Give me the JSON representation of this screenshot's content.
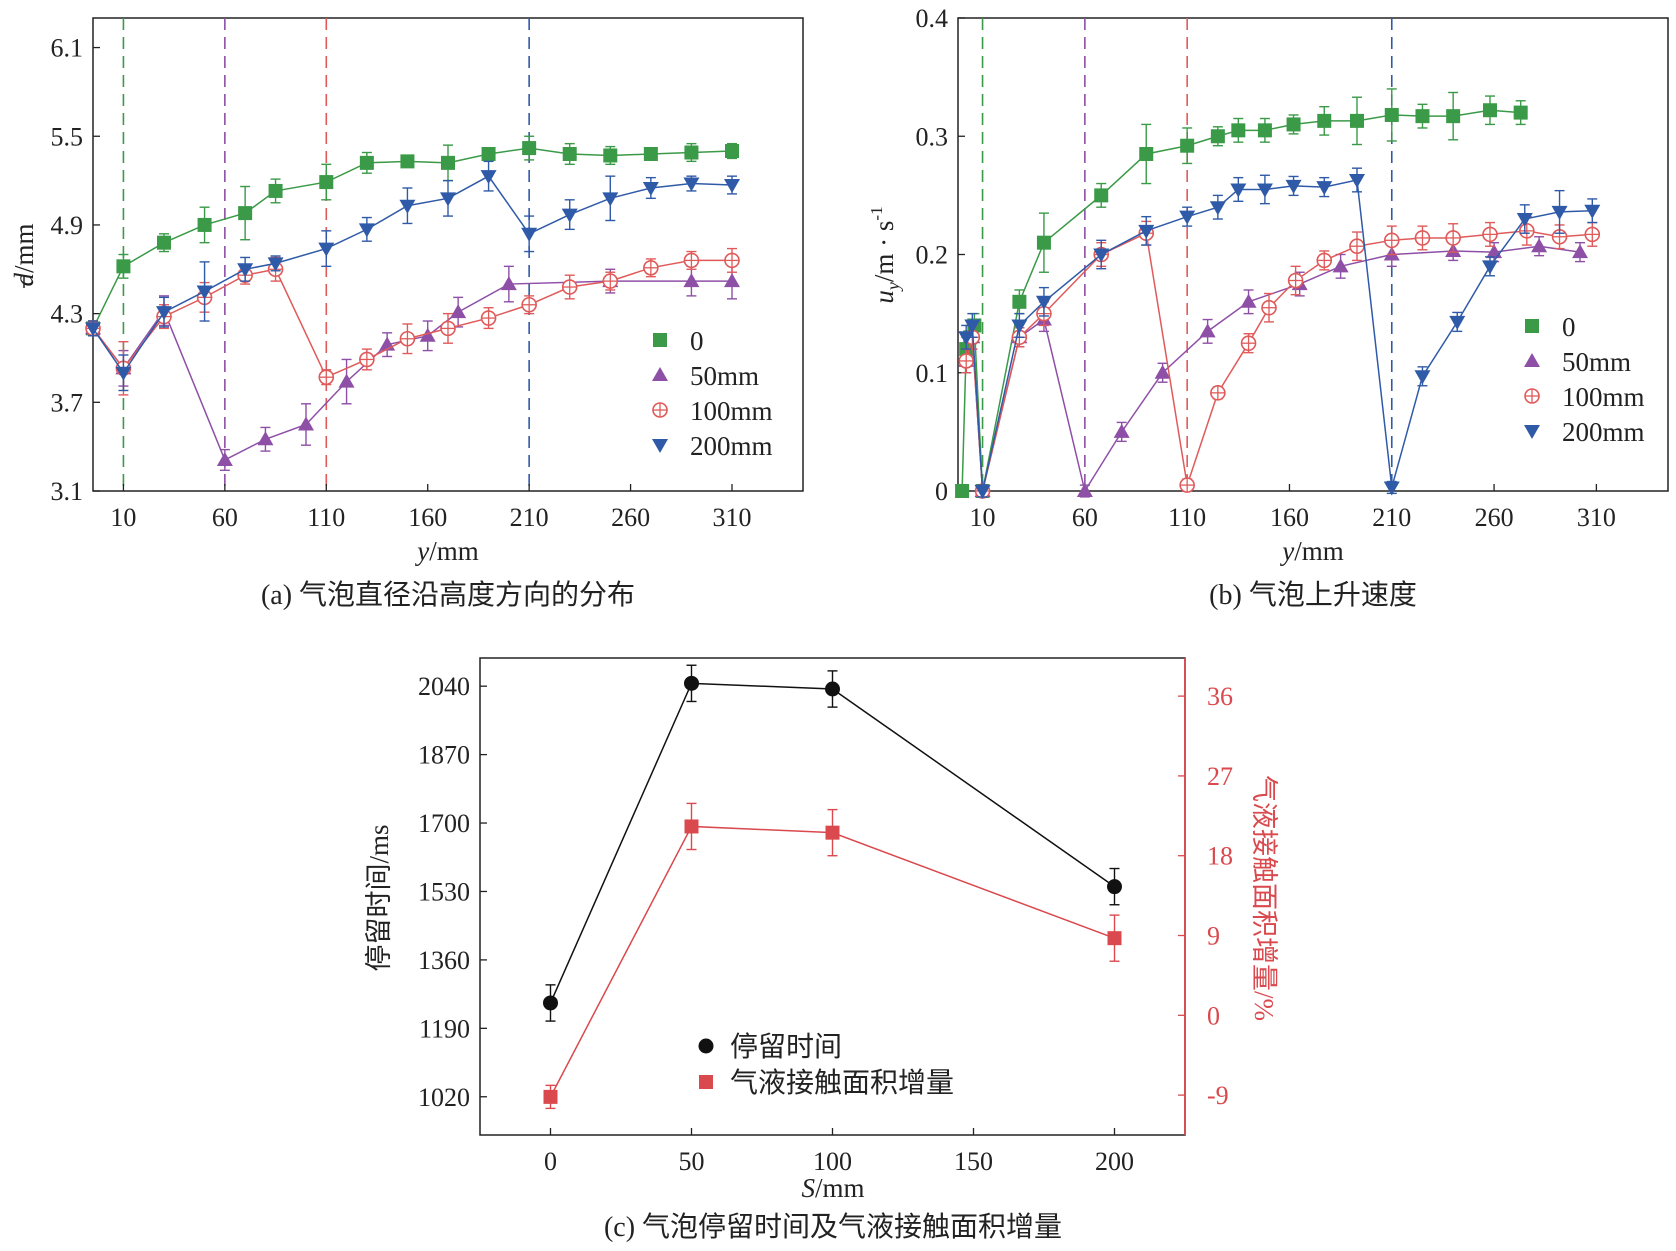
{
  "chart_data": [
    {
      "id": "a",
      "type": "line",
      "caption": "(a) 气泡直径沿高度方向的分布",
      "xlabel_var": "y",
      "xlabel_unit": "/mm",
      "ylabel_var": "d",
      "ylabel_unit": "/mm",
      "xlim": [
        -5,
        345
      ],
      "ylim": [
        3.1,
        6.3
      ],
      "xticks": [
        "10",
        "60",
        "110",
        "160",
        "210",
        "260",
        "310"
      ],
      "yticks": [
        "3.1",
        "3.7",
        "4.3",
        "4.9",
        "5.5",
        "6.1"
      ],
      "vlines": [
        {
          "x": 10,
          "color": "#3a9a47"
        },
        {
          "x": 60,
          "color": "#8e4fa6"
        },
        {
          "x": 110,
          "color": "#e05a5a"
        },
        {
          "x": 210,
          "color": "#2f5aa8"
        }
      ],
      "series": [
        {
          "name": "0",
          "marker": "square",
          "color": "#3a9a47",
          "x": [
            -5,
            10,
            30,
            50,
            70,
            85,
            110,
            130,
            150,
            170,
            190,
            210,
            230,
            250,
            270,
            290,
            310
          ],
          "y": [
            4.2,
            4.62,
            4.78,
            4.9,
            4.98,
            5.13,
            5.19,
            5.32,
            5.33,
            5.32,
            5.38,
            5.42,
            5.38,
            5.37,
            5.38,
            5.39,
            5.4
          ],
          "err": [
            0.05,
            0.08,
            0.06,
            0.12,
            0.18,
            0.08,
            0.12,
            0.07,
            0.04,
            0.12,
            0.04,
            0.08,
            0.07,
            0.06,
            0.04,
            0.06,
            0.05
          ]
        },
        {
          "name": "50mm",
          "marker": "triangle-up",
          "color": "#8e4fa6",
          "x": [
            -5,
            10,
            30,
            60,
            80,
            100,
            120,
            140,
            160,
            175,
            200,
            250,
            290,
            310
          ],
          "y": [
            4.2,
            3.93,
            4.32,
            3.31,
            3.45,
            3.55,
            3.84,
            4.09,
            4.15,
            4.31,
            4.5,
            4.52,
            4.52,
            4.52
          ],
          "err": [
            0.05,
            0.12,
            0.1,
            0.07,
            0.08,
            0.14,
            0.15,
            0.08,
            0.1,
            0.1,
            0.12,
            0.08,
            0.1,
            0.12
          ]
        },
        {
          "name": "100mm",
          "marker": "circle-plus",
          "color": "#e05a5a",
          "x": [
            -5,
            10,
            30,
            50,
            70,
            85,
            110,
            130,
            150,
            170,
            190,
            210,
            230,
            250,
            270,
            290,
            310
          ],
          "y": [
            4.2,
            3.93,
            4.28,
            4.41,
            4.56,
            4.6,
            3.87,
            3.99,
            4.13,
            4.2,
            4.27,
            4.36,
            4.48,
            4.52,
            4.61,
            4.66,
            4.66
          ],
          "err": [
            0.05,
            0.18,
            0.08,
            0.1,
            0.06,
            0.08,
            0.05,
            0.07,
            0.1,
            0.1,
            0.07,
            0.06,
            0.08,
            0.06,
            0.06,
            0.06,
            0.08
          ]
        },
        {
          "name": "200mm",
          "marker": "triangle-down",
          "color": "#2f5aa8",
          "x": [
            -5,
            10,
            30,
            50,
            70,
            85,
            110,
            130,
            150,
            170,
            190,
            210,
            230,
            250,
            270,
            290,
            310
          ],
          "y": [
            4.2,
            3.9,
            4.31,
            4.45,
            4.6,
            4.64,
            4.74,
            4.87,
            5.03,
            5.08,
            5.23,
            4.84,
            4.97,
            5.08,
            5.15,
            5.18,
            5.17
          ],
          "err": [
            0.05,
            0.12,
            0.1,
            0.2,
            0.08,
            0.05,
            0.12,
            0.08,
            0.12,
            0.12,
            0.1,
            0.12,
            0.1,
            0.15,
            0.07,
            0.05,
            0.06
          ]
        }
      ]
    },
    {
      "id": "b",
      "type": "line",
      "caption": "(b) 气泡上升速度",
      "xlabel_var": "y",
      "xlabel_unit": "/mm",
      "ylabel_var": "u",
      "ylabel_sub": "y",
      "ylabel_unit": "/m · s",
      "ylabel_sup": "-1",
      "xlim": [
        -2,
        345
      ],
      "ylim": [
        0,
        0.4
      ],
      "xticks": [
        "10",
        "60",
        "110",
        "160",
        "210",
        "260",
        "310"
      ],
      "yticks": [
        "0",
        "0.1",
        "0.2",
        "0.3",
        "0.4"
      ],
      "vlines": [
        {
          "x": 10,
          "color": "#3a9a47"
        },
        {
          "x": 60,
          "color": "#8e4fa6"
        },
        {
          "x": 110,
          "color": "#e05a5a"
        },
        {
          "x": 210,
          "color": "#2f5aa8"
        }
      ],
      "series": [
        {
          "name": "0",
          "marker": "square",
          "color": "#3a9a47",
          "x": [
            0,
            2,
            4,
            6,
            10,
            28,
            40,
            68,
            90,
            110,
            125,
            135,
            148,
            162,
            177,
            193,
            210,
            225,
            240,
            258,
            273
          ],
          "y": [
            0,
            0.12,
            0.13,
            0.14,
            0.0,
            0.16,
            0.21,
            0.25,
            0.285,
            0.292,
            0.3,
            0.305,
            0.305,
            0.31,
            0.313,
            0.313,
            0.318,
            0.317,
            0.317,
            0.322,
            0.32
          ],
          "err": [
            0,
            0.01,
            0.01,
            0.01,
            0.005,
            0.01,
            0.025,
            0.01,
            0.025,
            0.015,
            0.008,
            0.01,
            0.01,
            0.008,
            0.012,
            0.02,
            0.022,
            0.01,
            0.02,
            0.012,
            0.01
          ]
        },
        {
          "name": "50mm",
          "marker": "triangle-up",
          "color": "#8e4fa6",
          "x": [
            2,
            5,
            10,
            28,
            40,
            60,
            78,
            98,
            120,
            140,
            165,
            185,
            210,
            240,
            260,
            282,
            302
          ],
          "y": [
            0.11,
            0.13,
            0.0,
            0.13,
            0.145,
            0.0,
            0.05,
            0.1,
            0.135,
            0.16,
            0.175,
            0.19,
            0.2,
            0.203,
            0.202,
            0.207,
            0.202
          ],
          "err": [
            0.01,
            0.01,
            0.005,
            0.008,
            0.01,
            0.005,
            0.008,
            0.008,
            0.01,
            0.01,
            0.01,
            0.01,
            0.01,
            0.008,
            0.008,
            0.008,
            0.008
          ]
        },
        {
          "name": "100mm",
          "marker": "circle-plus",
          "color": "#e05a5a",
          "x": [
            2,
            5,
            10,
            28,
            40,
            68,
            90,
            110,
            125,
            140,
            150,
            163,
            177,
            193,
            210,
            225,
            240,
            258,
            276,
            292,
            308
          ],
          "y": [
            0.11,
            0.13,
            0.0,
            0.13,
            0.15,
            0.2,
            0.218,
            0.005,
            0.083,
            0.125,
            0.155,
            0.178,
            0.195,
            0.207,
            0.212,
            0.214,
            0.214,
            0.217,
            0.22,
            0.215,
            0.217
          ],
          "err": [
            0.01,
            0.01,
            0.005,
            0.008,
            0.01,
            0.01,
            0.01,
            0.005,
            0.005,
            0.008,
            0.012,
            0.012,
            0.008,
            0.012,
            0.012,
            0.01,
            0.012,
            0.01,
            0.012,
            0.01,
            0.01
          ]
        },
        {
          "name": "200mm",
          "marker": "triangle-down",
          "color": "#2f5aa8",
          "x": [
            2,
            5,
            10,
            28,
            40,
            68,
            90,
            110,
            125,
            135,
            148,
            162,
            177,
            193,
            210,
            225,
            242,
            258,
            275,
            292,
            308
          ],
          "y": [
            0.13,
            0.14,
            0.0,
            0.14,
            0.16,
            0.2,
            0.22,
            0.232,
            0.24,
            0.255,
            0.255,
            0.258,
            0.257,
            0.263,
            0.003,
            0.097,
            0.143,
            0.19,
            0.23,
            0.236,
            0.237
          ],
          "err": [
            0.01,
            0.01,
            0.005,
            0.01,
            0.012,
            0.012,
            0.012,
            0.008,
            0.01,
            0.01,
            0.012,
            0.008,
            0.008,
            0.01,
            0.005,
            0.008,
            0.008,
            0.008,
            0.012,
            0.018,
            0.01
          ]
        }
      ]
    },
    {
      "id": "c",
      "type": "line",
      "caption": "(c) 气泡停留时间及气液接触面积增量",
      "xlabel_var": "S",
      "xlabel_unit": "/mm",
      "ylabel": "停留时间/ms",
      "ylabel2": "气液接触面积增量/%",
      "xlim": [
        -25,
        225
      ],
      "xticks": [
        "0",
        "50",
        "100",
        "150",
        "200"
      ],
      "ylim": [
        925,
        2110
      ],
      "yticks": [
        "1020",
        "1190",
        "1360",
        "1530",
        "1700",
        "1870",
        "2040"
      ],
      "ylim2": [
        -13.5,
        40.3
      ],
      "yticks2": [
        "-9",
        "0",
        "9",
        "18",
        "27",
        "36"
      ],
      "axis2_color": "#d9494d",
      "series": [
        {
          "name": "停留时间",
          "marker": "circle",
          "color": "#111111",
          "axis": "left",
          "x": [
            0,
            50,
            100,
            200
          ],
          "y": [
            1253,
            2047,
            2033,
            1542
          ],
          "err": [
            45,
            45,
            45,
            45
          ]
        },
        {
          "name": "气液接触面积增量",
          "marker": "square",
          "color": "#d9494d",
          "axis": "right",
          "x": [
            0,
            50,
            100,
            200
          ],
          "y": [
            -9.2,
            21.3,
            20.6,
            8.7
          ],
          "err": [
            1.3,
            2.6,
            2.6,
            2.6
          ]
        }
      ]
    }
  ]
}
